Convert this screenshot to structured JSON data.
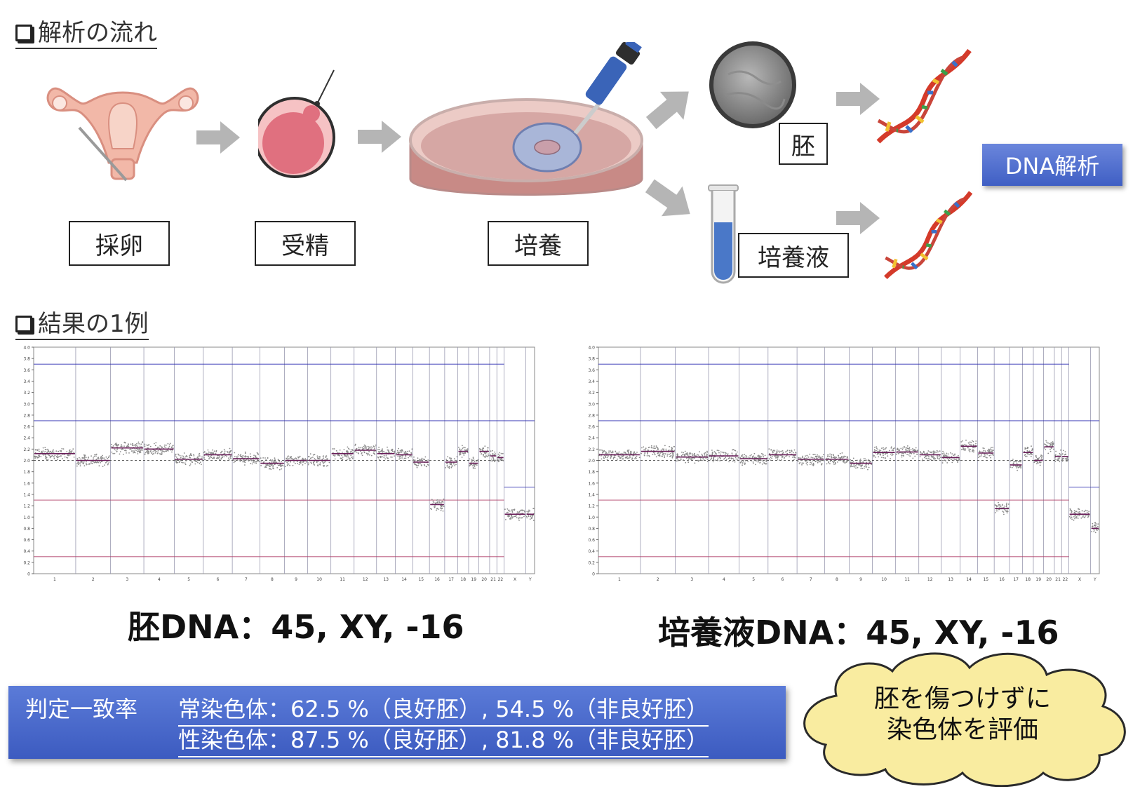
{
  "sections": {
    "flow_title": "解析の流れ",
    "result_title": "結果の1例"
  },
  "steps": {
    "oocyte_retrieval": "採卵",
    "fertilization": "受精",
    "culture": "培養",
    "embryo": "胚",
    "culture_medium": "培養液",
    "dna_analysis": "DNA解析"
  },
  "results": {
    "embryo_result": "胚DNA：45, XY, -16",
    "medium_result": "培養液DNA：45, XY, -16"
  },
  "concordance": {
    "label": "判定一致率",
    "autosome_line": "常染色体：62.5 %（良好胚）, 54.5 %（非良好胚）",
    "sex_chrom_line": "性染色体：87.5 %（良好胚）, 81.8 %（非良好胚）"
  },
  "callout": {
    "line1": "胚を傷つけずに",
    "line2": "染色体を評価"
  },
  "colors": {
    "accent_blue": "#4a6ad0",
    "cloud_fill": "#f9eca0",
    "arrow_gray": "#b5b5b5",
    "threshold_blue": "#2b2bb0",
    "threshold_red": "#b0406a"
  },
  "chart_data": [
    {
      "type": "scatter",
      "title": "",
      "y_ticks": [
        "0",
        "0.2",
        "0.4",
        "0.6",
        "0.8",
        "1.0",
        "1.2",
        "1.4",
        "1.6",
        "1.8",
        "2.0",
        "2.2",
        "2.4",
        "2.6",
        "2.8",
        "3.0",
        "3.2",
        "3.4",
        "3.6",
        "3.8",
        "4.0"
      ],
      "ylim": [
        0,
        4.0
      ],
      "categories": [
        "1",
        "2",
        "3",
        "4",
        "5",
        "6",
        "7",
        "8",
        "9",
        "10",
        "11",
        "12",
        "13",
        "14",
        "15",
        "16",
        "17",
        "18",
        "19",
        "20",
        "21",
        "22",
        "X",
        "Y"
      ],
      "copy_number": [
        2.12,
        2.0,
        2.22,
        2.2,
        2.02,
        2.1,
        2.03,
        1.95,
        2.0,
        2.0,
        2.12,
        2.18,
        2.12,
        2.1,
        1.97,
        1.22,
        1.97,
        2.16,
        1.95,
        2.16,
        2.08,
        2.05,
        1.05,
        1.05
      ],
      "reference_lines": [
        3.7,
        2.7,
        1.3,
        0.3
      ],
      "baseline": 2.0
    },
    {
      "type": "scatter",
      "title": "",
      "y_ticks": [
        "0",
        "0.2",
        "0.4",
        "0.6",
        "0.8",
        "1.0",
        "1.2",
        "1.4",
        "1.6",
        "1.8",
        "2.0",
        "2.2",
        "2.4",
        "2.6",
        "2.8",
        "3.0",
        "3.2",
        "3.4",
        "3.6",
        "3.8",
        "4.0"
      ],
      "ylim": [
        0,
        4.0
      ],
      "categories": [
        "1",
        "2",
        "3",
        "4",
        "5",
        "6",
        "7",
        "8",
        "9",
        "10",
        "11",
        "12",
        "13",
        "14",
        "15",
        "16",
        "17",
        "18",
        "19",
        "20",
        "21",
        "22",
        "X",
        "Y"
      ],
      "copy_number": [
        2.1,
        2.16,
        2.06,
        2.08,
        2.03,
        2.1,
        2.02,
        2.02,
        1.95,
        2.14,
        2.15,
        2.1,
        2.05,
        2.25,
        2.13,
        1.15,
        1.92,
        2.14,
        2.0,
        2.24,
        2.07,
        2.07,
        1.05,
        0.8
      ],
      "reference_lines": [
        3.7,
        2.7,
        1.3,
        0.3
      ],
      "baseline": 2.0
    }
  ]
}
